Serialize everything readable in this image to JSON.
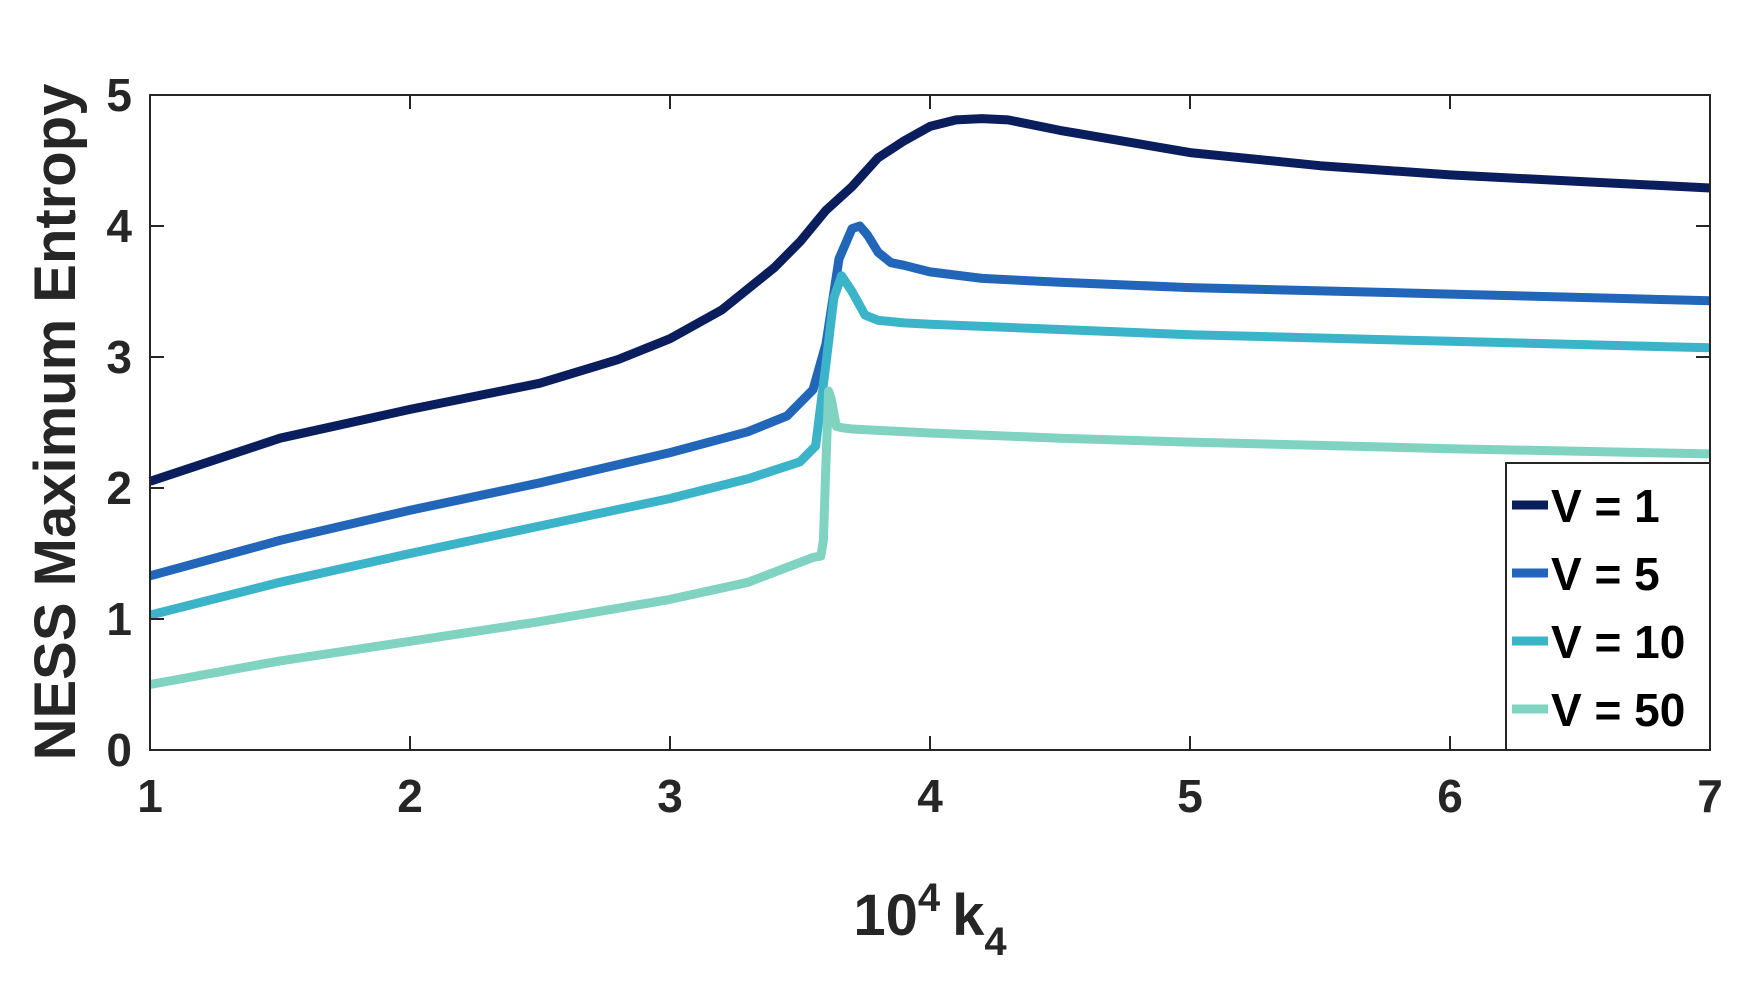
{
  "chart_data": {
    "type": "line",
    "title": "",
    "xlabel": {
      "base": "10",
      "exp": "4",
      "var": "k",
      "sub": "4"
    },
    "ylabel": "NESS Maximum Entropy",
    "xlim": [
      1,
      7
    ],
    "ylim": [
      0,
      5
    ],
    "xticks": [
      1,
      2,
      3,
      4,
      5,
      6,
      7
    ],
    "yticks": [
      0,
      1,
      2,
      3,
      4,
      5
    ],
    "grid": false,
    "legend_position": "bottom-right",
    "series": [
      {
        "name": "V = 1",
        "color": "#0a1d5c",
        "x": [
          1.0,
          1.5,
          2.0,
          2.5,
          2.8,
          3.0,
          3.2,
          3.4,
          3.5,
          3.6,
          3.7,
          3.8,
          3.9,
          4.0,
          4.1,
          4.2,
          4.3,
          4.5,
          5.0,
          5.5,
          6.0,
          6.5,
          7.0
        ],
        "y": [
          2.05,
          2.38,
          2.6,
          2.8,
          2.98,
          3.14,
          3.36,
          3.68,
          3.88,
          4.12,
          4.3,
          4.52,
          4.65,
          4.76,
          4.81,
          4.82,
          4.81,
          4.73,
          4.56,
          4.46,
          4.39,
          4.34,
          4.29
        ]
      },
      {
        "name": "V = 5",
        "color": "#2166b8",
        "x": [
          1.0,
          1.5,
          2.0,
          2.5,
          3.0,
          3.3,
          3.45,
          3.55,
          3.6,
          3.65,
          3.7,
          3.73,
          3.76,
          3.8,
          3.85,
          3.9,
          4.0,
          4.2,
          4.5,
          5.0,
          6.0,
          7.0
        ],
        "y": [
          1.33,
          1.6,
          1.83,
          2.04,
          2.27,
          2.43,
          2.55,
          2.75,
          3.1,
          3.75,
          3.98,
          4.0,
          3.93,
          3.8,
          3.72,
          3.7,
          3.65,
          3.6,
          3.57,
          3.53,
          3.48,
          3.43
        ]
      },
      {
        "name": "V = 10",
        "color": "#3bb3c9",
        "x": [
          1.0,
          1.5,
          2.0,
          2.5,
          3.0,
          3.3,
          3.5,
          3.56,
          3.6,
          3.63,
          3.66,
          3.7,
          3.75,
          3.8,
          3.9,
          4.0,
          4.5,
          5.0,
          6.0,
          7.0
        ],
        "y": [
          1.03,
          1.28,
          1.5,
          1.71,
          1.92,
          2.07,
          2.2,
          2.32,
          2.95,
          3.45,
          3.62,
          3.5,
          3.32,
          3.28,
          3.26,
          3.25,
          3.21,
          3.17,
          3.12,
          3.07
        ]
      },
      {
        "name": "V = 50",
        "color": "#7fd3c0",
        "x": [
          1.0,
          1.5,
          2.0,
          2.5,
          3.0,
          3.3,
          3.55,
          3.58,
          3.59,
          3.6,
          3.61,
          3.62,
          3.64,
          3.66,
          3.7,
          4.0,
          4.5,
          5.0,
          6.0,
          7.0
        ],
        "y": [
          0.5,
          0.68,
          0.83,
          0.98,
          1.15,
          1.28,
          1.47,
          1.48,
          1.6,
          2.2,
          2.74,
          2.68,
          2.47,
          2.46,
          2.45,
          2.42,
          2.38,
          2.35,
          2.3,
          2.26
        ]
      }
    ]
  }
}
